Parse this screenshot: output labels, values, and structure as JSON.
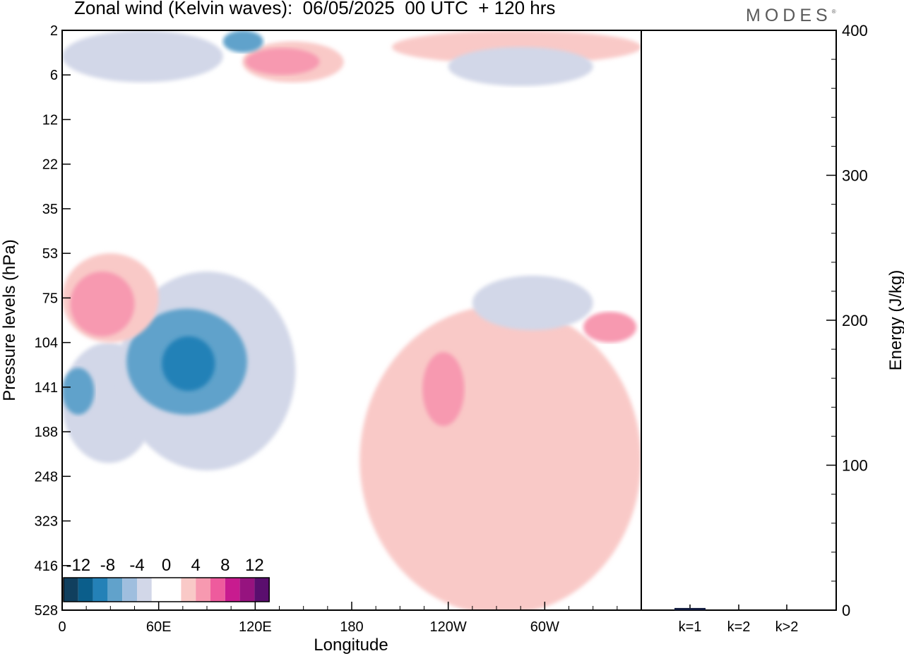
{
  "chart_data": [
    {
      "type": "heatmap",
      "title": "Zonal wind (Kelvin waves):  06/05/2025  00 UTC  + 120 hrs",
      "xlabel": "Longitude",
      "ylabel": "Pressure levels (hPa)",
      "x_range_deg_east": [
        0,
        360
      ],
      "x_ticks": [
        {
          "lon": 0,
          "label": "0"
        },
        {
          "lon": 60,
          "label": "60E"
        },
        {
          "lon": 120,
          "label": "120E"
        },
        {
          "lon": 180,
          "label": "180"
        },
        {
          "lon": 240,
          "label": "120W"
        },
        {
          "lon": 300,
          "label": "60W"
        }
      ],
      "y_levels_hpa": [
        "2",
        "6",
        "12",
        "22",
        "35",
        "53",
        "75",
        "104",
        "141",
        "188",
        "248",
        "323",
        "416",
        "528"
      ],
      "legend": {
        "placement": "bottom-left",
        "labels": [
          "-12",
          "-8",
          "-4",
          "0",
          "4",
          "8",
          "12"
        ],
        "colors": [
          "#103f5e",
          "#0b5e8b",
          "#2481b7",
          "#61a2cb",
          "#9fbede",
          "#d2d7e8",
          "#ffffff",
          "#ffffff",
          "#f9c9c7",
          "#f799b0",
          "#ee5b9d",
          "#c81b8f",
          "#96137f",
          "#5a0e6e"
        ]
      },
      "regions": [
        {
          "level": -4,
          "lon": [
            0,
            58
          ],
          "p_hpa": [
            104,
            230
          ]
        },
        {
          "level": -8,
          "lon": [
            0,
            20
          ],
          "p_hpa": [
            125,
            170
          ]
        },
        {
          "level": -4,
          "lon": [
            35,
            145
          ],
          "p_hpa": [
            62,
            240
          ]
        },
        {
          "level": -8,
          "lon": [
            40,
            115
          ],
          "p_hpa": [
            82,
            170
          ]
        },
        {
          "level": -12,
          "lon": [
            62,
            95
          ],
          "p_hpa": [
            100,
            145
          ]
        },
        {
          "level": 4,
          "lon": [
            0,
            60
          ],
          "p_hpa": [
            53,
            104
          ]
        },
        {
          "level": 8,
          "lon": [
            5,
            45
          ],
          "p_hpa": [
            62,
            100
          ]
        },
        {
          "level": 4,
          "lon": [
            185,
            360
          ],
          "p_hpa": [
            80,
            540
          ]
        },
        {
          "level": 8,
          "lon": [
            224,
            250
          ],
          "p_hpa": [
            112,
            182
          ]
        },
        {
          "level": 8,
          "lon": [
            324,
            357
          ],
          "p_hpa": [
            84,
            104
          ]
        },
        {
          "level": -4,
          "lon": [
            255,
            330
          ],
          "p_hpa": [
            64,
            96
          ]
        },
        {
          "level": 4,
          "lon": [
            112,
            175
          ],
          "p_hpa": [
            3,
            7
          ]
        },
        {
          "level": 8,
          "lon": [
            114,
            160
          ],
          "p_hpa": [
            3.6,
            6
          ]
        },
        {
          "level": 4,
          "lon": [
            205,
            360
          ],
          "p_hpa": [
            2,
            5
          ]
        },
        {
          "level": -4,
          "lon": [
            240,
            330
          ],
          "p_hpa": [
            3.5,
            7.5
          ]
        },
        {
          "level": -4,
          "lon": [
            0,
            100
          ],
          "p_hpa": [
            2,
            7
          ]
        },
        {
          "level": -8,
          "lon": [
            100,
            125
          ],
          "p_hpa": [
            2,
            4
          ]
        }
      ]
    },
    {
      "type": "bar",
      "ylabel": "Energy (J/kg)",
      "ylim": [
        0,
        400
      ],
      "y_ticks": [
        "0",
        "100",
        "200",
        "300",
        "400"
      ],
      "categories": [
        "k=1",
        "k=2",
        "k>2"
      ],
      "values": [
        1.5,
        0,
        0
      ],
      "bar_color": "#101a3e"
    }
  ]
}
